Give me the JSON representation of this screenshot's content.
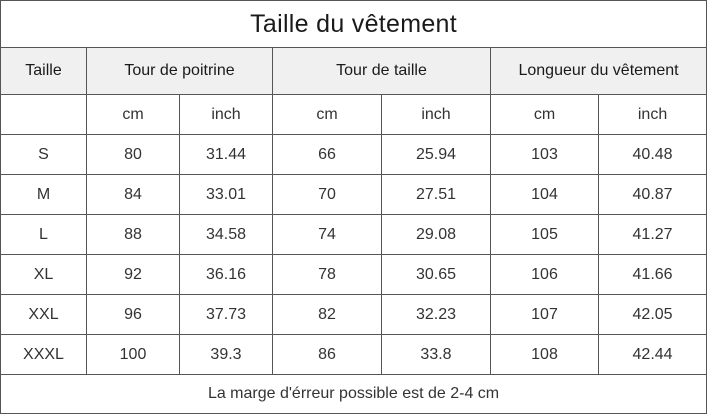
{
  "title": "Taille du vêtement",
  "headers": {
    "size": "Taille",
    "chest": "Tour de poitrine",
    "waist": "Tour de taille",
    "length": "Longueur du vêtement"
  },
  "units": [
    "cm",
    "inch",
    "cm",
    "inch",
    "cm",
    "inch"
  ],
  "rows": [
    {
      "size": "S",
      "chest_cm": "80",
      "chest_inch": "31.44",
      "waist_cm": "66",
      "waist_inch": "25.94",
      "length_cm": "103",
      "length_inch": "40.48"
    },
    {
      "size": "M",
      "chest_cm": "84",
      "chest_inch": "33.01",
      "waist_cm": "70",
      "waist_inch": "27.51",
      "length_cm": "104",
      "length_inch": "40.87"
    },
    {
      "size": "L",
      "chest_cm": "88",
      "chest_inch": "34.58",
      "waist_cm": "74",
      "waist_inch": "29.08",
      "length_cm": "105",
      "length_inch": "41.27"
    },
    {
      "size": "XL",
      "chest_cm": "92",
      "chest_inch": "36.16",
      "waist_cm": "78",
      "waist_inch": "30.65",
      "length_cm": "106",
      "length_inch": "41.66"
    },
    {
      "size": "XXL",
      "chest_cm": "96",
      "chest_inch": "37.73",
      "waist_cm": "82",
      "waist_inch": "32.23",
      "length_cm": "107",
      "length_inch": "42.05"
    },
    {
      "size": "XXXL",
      "chest_cm": "100",
      "chest_inch": "39.3",
      "waist_cm": "86",
      "waist_inch": "33.8",
      "length_cm": "108",
      "length_inch": "42.44"
    }
  ],
  "note": "La marge d'érreur possible est de 2-4 cm",
  "colors": {
    "header_background": "#f0f0f0",
    "border": "#555555",
    "text": "#333333"
  }
}
